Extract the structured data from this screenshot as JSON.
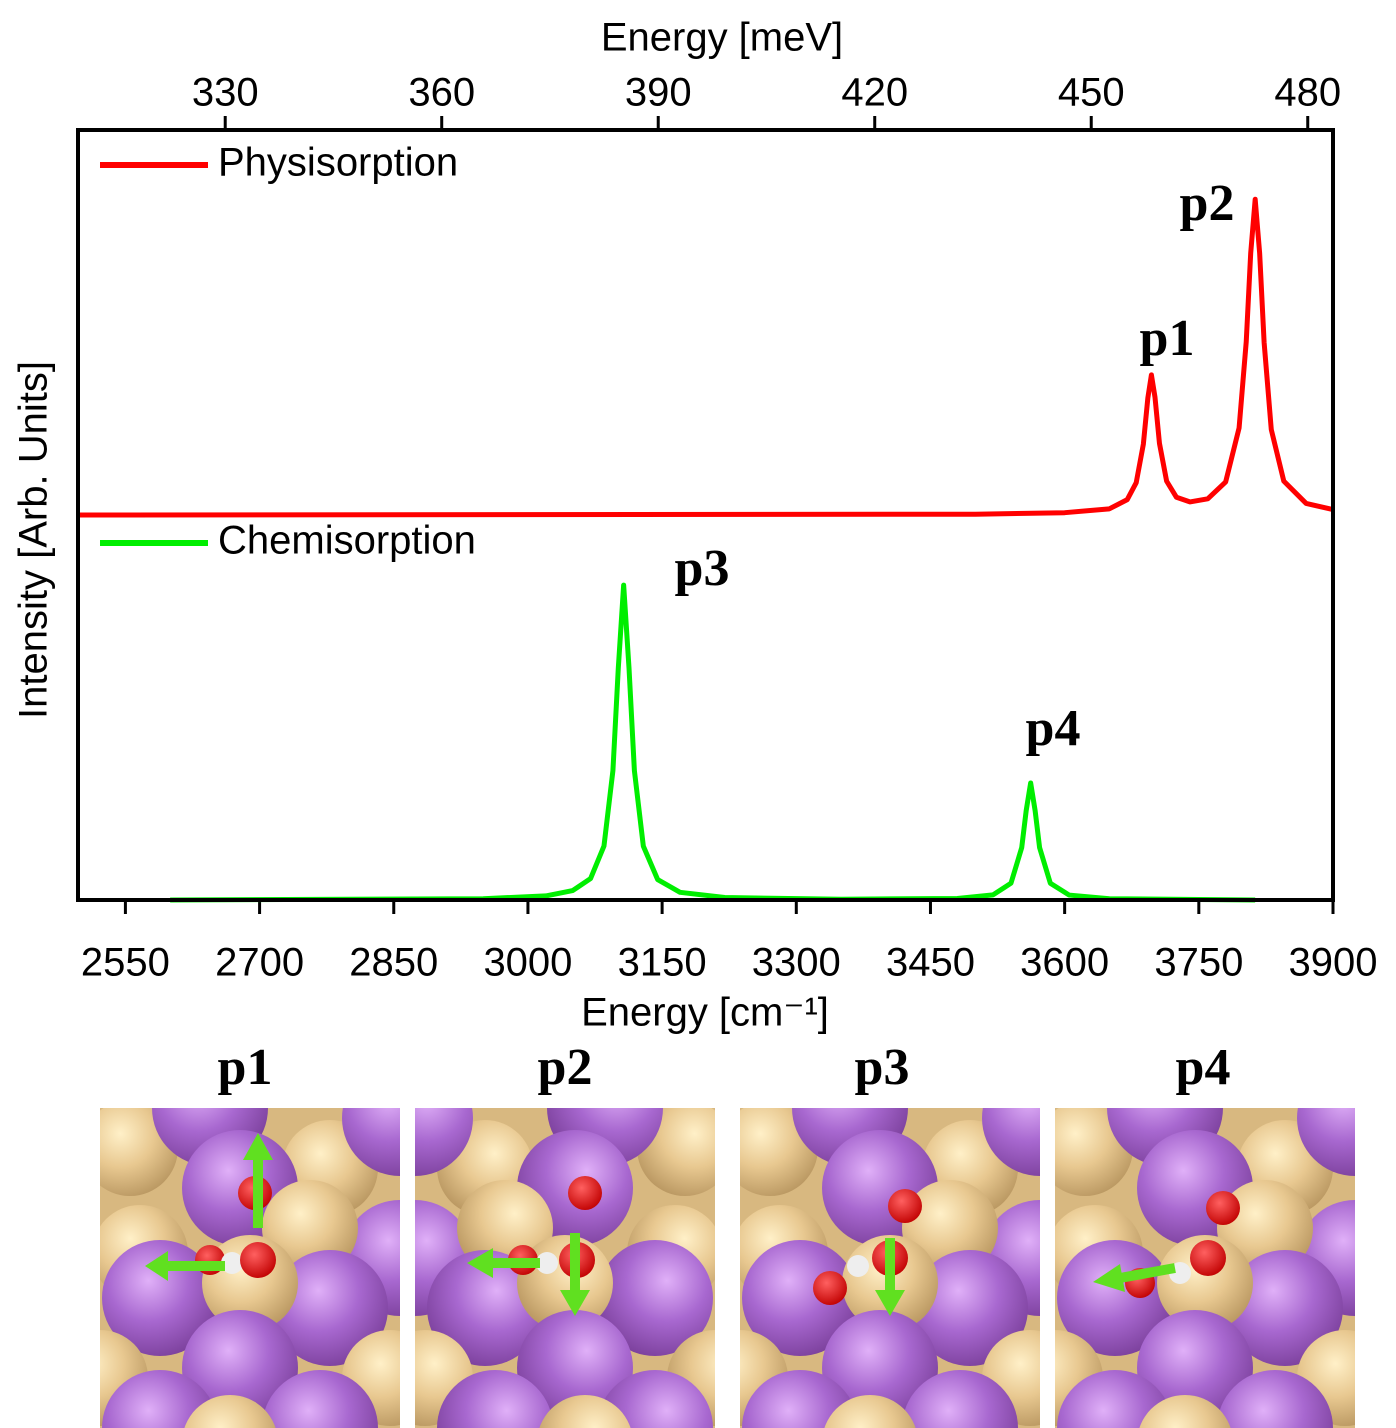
{
  "chart_data": {
    "type": "line",
    "x_label": "Energy [cm⁻¹]",
    "x2_label": "Energy [meV]",
    "y_label": "Intensity [Arb. Units]",
    "xlim": [
      2497,
      3900
    ],
    "xticks": [
      2550,
      2700,
      2850,
      3000,
      3150,
      3300,
      3450,
      3600,
      3750,
      3900
    ],
    "x2lim": [
      309.6,
      483.5
    ],
    "x2ticks": [
      330,
      360,
      390,
      420,
      450,
      480
    ],
    "ylim": [
      0,
      1
    ],
    "series": [
      {
        "name": "Physisorption",
        "color": "#ff0000",
        "x": [
          2497,
          3500,
          3600,
          3650,
          3670,
          3680,
          3688,
          3693,
          3697,
          3701,
          3706,
          3714,
          3725,
          3740,
          3760,
          3780,
          3795,
          3803,
          3808,
          3813,
          3818,
          3823,
          3831,
          3845,
          3870,
          3900
        ],
        "values": [
          0.5,
          0.501,
          0.503,
          0.508,
          0.52,
          0.542,
          0.592,
          0.652,
          0.682,
          0.653,
          0.593,
          0.544,
          0.523,
          0.517,
          0.521,
          0.543,
          0.613,
          0.725,
          0.84,
          0.91,
          0.84,
          0.724,
          0.611,
          0.544,
          0.515,
          0.507
        ]
      },
      {
        "name": "Chemisorption",
        "color": "#00ee00",
        "x": [
          2600,
          2950,
          3020,
          3050,
          3070,
          3085,
          3095,
          3101,
          3107,
          3113,
          3119,
          3129,
          3145,
          3170,
          3220,
          3350,
          3480,
          3520,
          3540,
          3552,
          3557,
          3562,
          3567,
          3572,
          3584,
          3605,
          3650,
          3813
        ],
        "values": [
          0,
          0.0017,
          0.0053,
          0.0122,
          0.0278,
          0.07,
          0.168,
          0.301,
          0.409,
          0.301,
          0.168,
          0.07,
          0.0266,
          0.01,
          0.0032,
          0.001,
          0.002,
          0.0067,
          0.0218,
          0.068,
          0.116,
          0.152,
          0.116,
          0.068,
          0.0218,
          0.0064,
          0.0016,
          0
        ]
      }
    ],
    "annotations": [
      "p1",
      "p2",
      "p3",
      "p4"
    ],
    "legend": "upper left"
  },
  "panels": [
    "p1",
    "p2",
    "p3",
    "p4"
  ]
}
